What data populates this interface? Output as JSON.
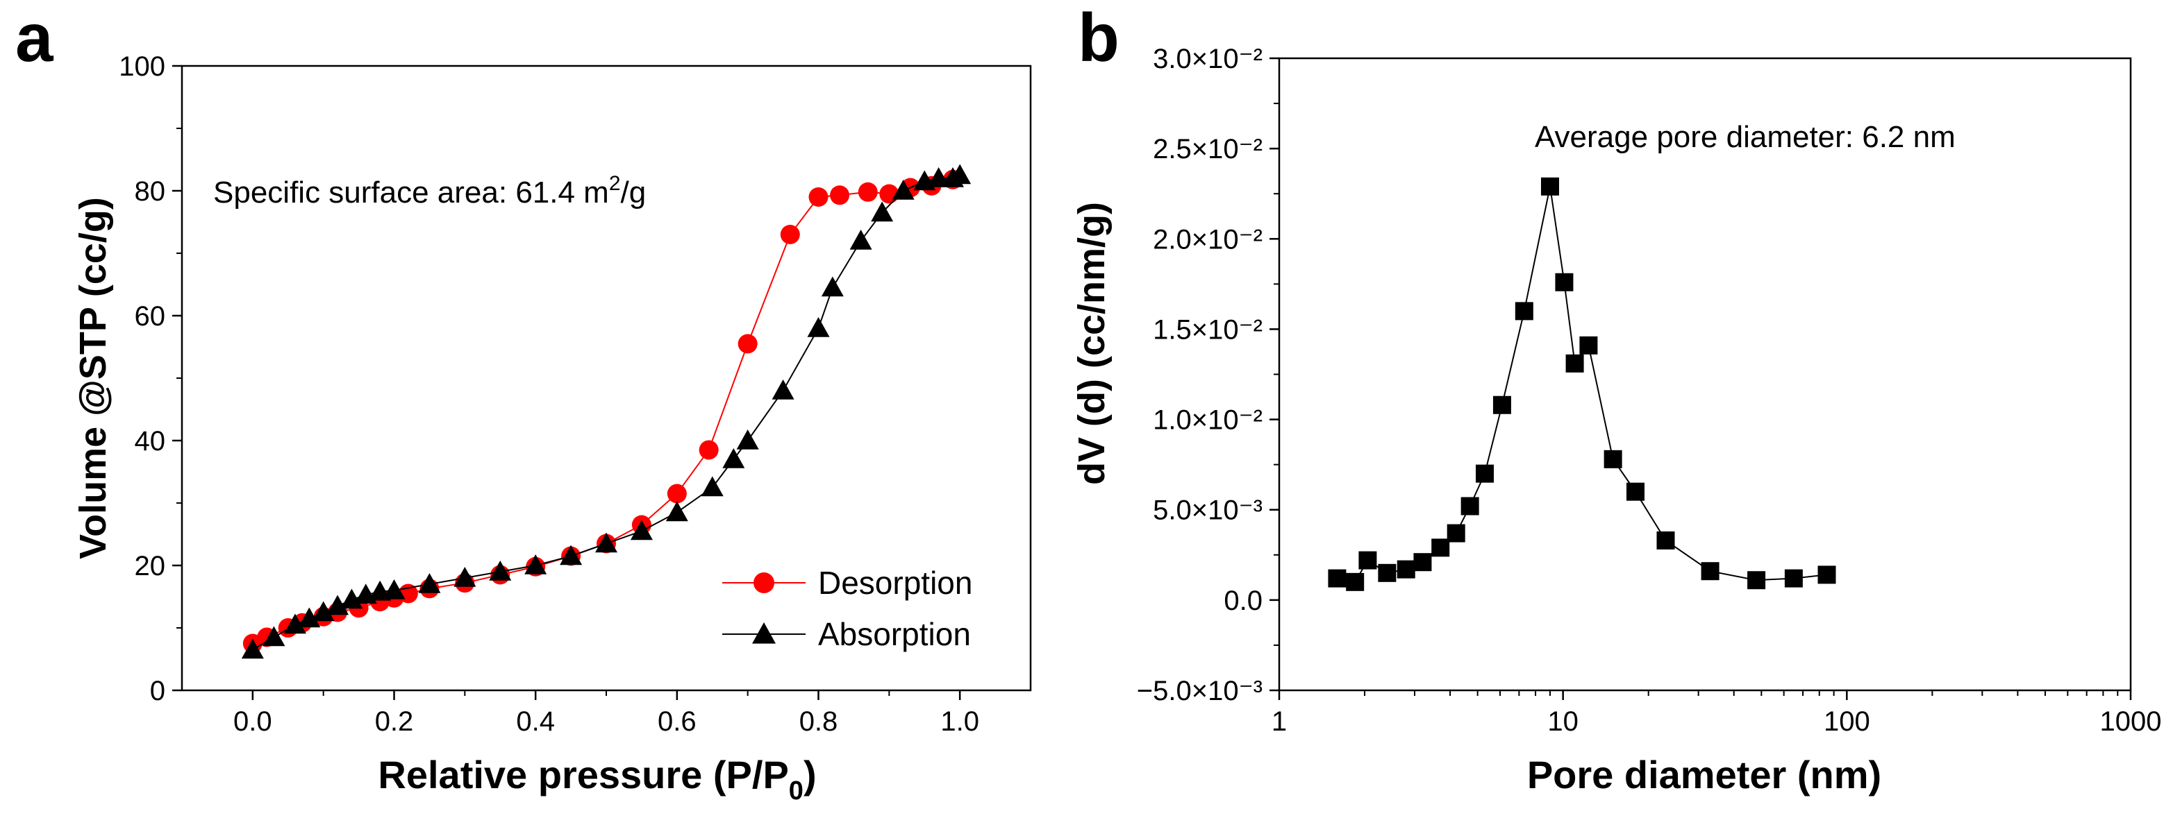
{
  "chart_data": [
    {
      "panel": "a",
      "type": "line",
      "title": "",
      "xlabel": "Relative pressure (P/P",
      "xlabel_sub": "0",
      "xlabel_end": ")",
      "ylabel": "Volume @STP (cc/g)",
      "xlim": [
        -0.1,
        1.1
      ],
      "ylim": [
        0,
        100
      ],
      "xticks": [
        0.0,
        0.2,
        0.4,
        0.6,
        0.8,
        1.0
      ],
      "xtick_labels": [
        "0.0",
        "0.2",
        "0.4",
        "0.6",
        "0.8",
        "1.0"
      ],
      "yticks": [
        0,
        20,
        40,
        60,
        80,
        100
      ],
      "ytick_labels": [
        "0",
        "20",
        "40",
        "60",
        "80",
        "100"
      ],
      "annotation": {
        "text": "Specific surface area: 61.4 m",
        "sup": "2",
        "suffix": "/g"
      },
      "legend_position": "bottom-right",
      "series": [
        {
          "name": "Desorption",
          "color": "#ff0000",
          "marker": "circle",
          "x": [
            0.0,
            0.02,
            0.05,
            0.07,
            0.1,
            0.12,
            0.15,
            0.18,
            0.2,
            0.22,
            0.25,
            0.3,
            0.35,
            0.4,
            0.45,
            0.5,
            0.55,
            0.6,
            0.645,
            0.7,
            0.76,
            0.8,
            0.83,
            0.87,
            0.9,
            0.93,
            0.96,
            0.99
          ],
          "y": [
            7.5,
            8.5,
            10.0,
            10.8,
            11.8,
            12.5,
            13.2,
            14.2,
            14.8,
            15.5,
            16.3,
            17.2,
            18.5,
            19.8,
            21.5,
            23.5,
            26.5,
            31.5,
            38.5,
            55.5,
            73.0,
            79.0,
            79.3,
            79.8,
            79.5,
            80.5,
            80.8,
            81.8
          ]
        },
        {
          "name": "Absorption",
          "color": "#000000",
          "marker": "triangle",
          "x": [
            0.0,
            0.03,
            0.06,
            0.08,
            0.1,
            0.12,
            0.14,
            0.16,
            0.18,
            0.2,
            0.25,
            0.3,
            0.35,
            0.4,
            0.45,
            0.5,
            0.55,
            0.6,
            0.65,
            0.68,
            0.7,
            0.75,
            0.8,
            0.82,
            0.86,
            0.89,
            0.92,
            0.95,
            0.97,
            0.99,
            1.0
          ],
          "y": [
            6.5,
            8.5,
            10.5,
            11.5,
            12.5,
            13.5,
            14.5,
            15.3,
            15.8,
            16.0,
            17.0,
            18.0,
            19.0,
            20.0,
            21.5,
            23.5,
            25.5,
            28.5,
            32.5,
            37.0,
            40.0,
            48.0,
            58.0,
            64.5,
            72.0,
            76.5,
            80.0,
            81.5,
            82.0,
            82.0,
            82.5
          ]
        }
      ]
    },
    {
      "panel": "b",
      "type": "line",
      "title": "",
      "xlabel": "Pore diameter (nm)",
      "ylabel": "dV (d) (cc/nm/g)",
      "xscale": "log",
      "xlim": [
        1,
        1000
      ],
      "ylim": [
        -0.005,
        0.03
      ],
      "xticks": [
        1,
        10,
        100,
        1000
      ],
      "xtick_labels": [
        "1",
        "10",
        "100",
        "1000"
      ],
      "yticks": [
        -0.005,
        0.0,
        0.005,
        0.01,
        0.015,
        0.02,
        0.025,
        0.03
      ],
      "ytick_labels": [
        "−5.0×10⁻³",
        "0.0",
        "5.0×10⁻³",
        "1.0×10⁻²",
        "1.5×10⁻²",
        "2.0×10⁻²",
        "2.5×10⁻²",
        "3.0×10⁻²"
      ],
      "annotation": {
        "text": "Average pore diameter: 6.2 nm"
      },
      "series": [
        {
          "name": "dV(d)",
          "color": "#000000",
          "marker": "square",
          "x": [
            1.6,
            1.85,
            2.05,
            2.4,
            2.8,
            3.2,
            3.7,
            4.2,
            4.7,
            5.3,
            6.1,
            7.3,
            9.0,
            10.1,
            11.0,
            12.3,
            15.0,
            18.0,
            23.0,
            33.0,
            48.0,
            65.0,
            85.0
          ],
          "y": [
            0.0012,
            0.001,
            0.0022,
            0.0015,
            0.0017,
            0.0021,
            0.0029,
            0.0037,
            0.0052,
            0.007,
            0.0108,
            0.016,
            0.0229,
            0.0176,
            0.0131,
            0.0141,
            0.0078,
            0.006,
            0.0033,
            0.0016,
            0.0011,
            0.0012,
            0.0014
          ]
        }
      ]
    }
  ],
  "panel_labels": {
    "a": "a",
    "b": "b"
  }
}
